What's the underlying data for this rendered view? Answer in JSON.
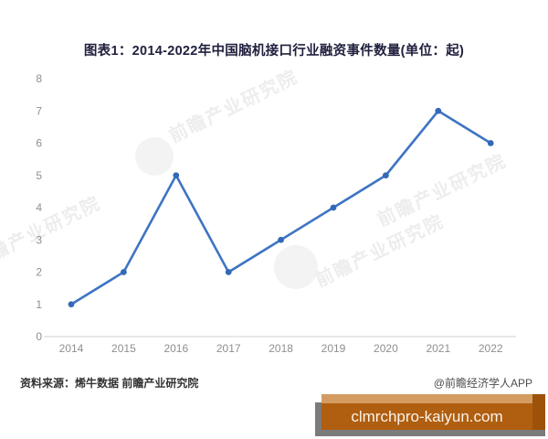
{
  "title": "图表1：2014-2022年中国脑机接口行业融资事件数量(单位：起)",
  "chart_data": {
    "type": "line",
    "title": "图表1：2014-2022年中国脑机接口行业融资事件数量(单位：起)",
    "categories": [
      "2014",
      "2015",
      "2016",
      "2017",
      "2018",
      "2019",
      "2020",
      "2021",
      "2022"
    ],
    "series": [
      {
        "name": "融资事件数量",
        "values": [
          1,
          2,
          5,
          2,
          3,
          4,
          5,
          7,
          6
        ]
      }
    ],
    "xlabel": "",
    "ylabel": "",
    "ylim": [
      0,
      8
    ],
    "yticks": [
      0,
      1,
      2,
      3,
      4,
      5,
      6,
      7,
      8
    ],
    "grid": "off",
    "legend": "none",
    "line_color": "#3e74c4",
    "marker_color": "#3568b8",
    "axis_line_color": "#d9d9d9",
    "tick_label_color": "#8f8f8f"
  },
  "footer": {
    "source": "资料来源：烯牛数据 前瞻产业研究院",
    "credit": "@前瞻经济学人APP"
  },
  "watermark": {
    "text": "前瞻产业研究院",
    "banner_url": "clmrchpro-kaiyun.com"
  },
  "colors": {
    "banner_orange": "#b05e10",
    "banner_tan": "#d49c61",
    "banner_dark_orange": "#9e5209",
    "banner_shadow_gray": "#7b7b7b",
    "title_color": "#20203f"
  }
}
